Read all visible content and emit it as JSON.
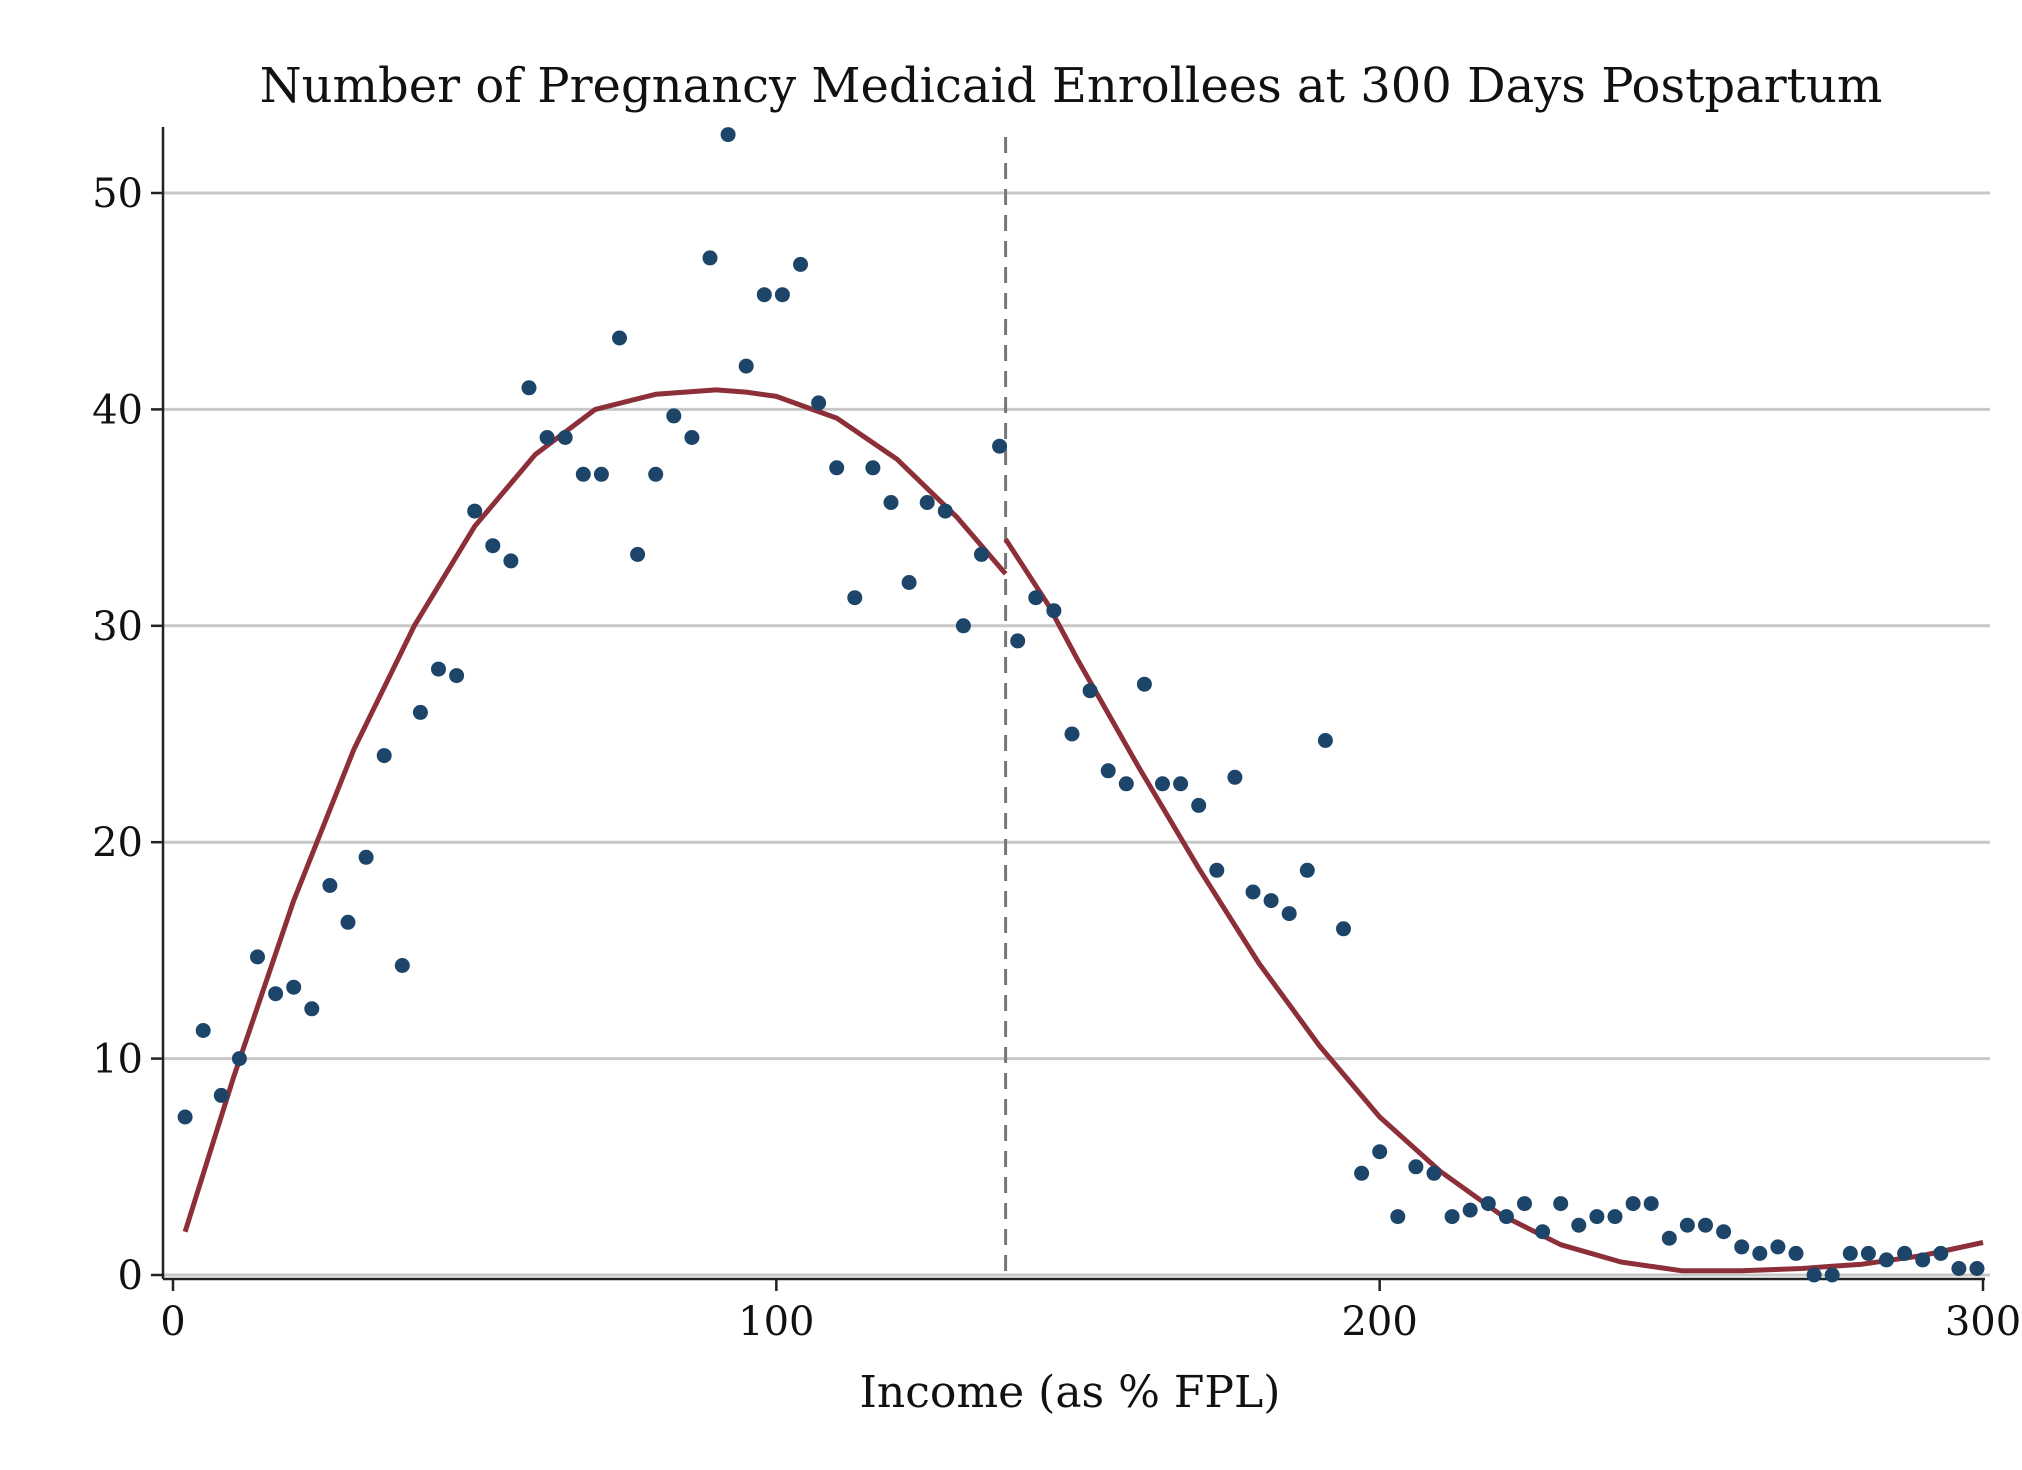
{
  "chart_data": {
    "type": "scatter",
    "title": "Number of Pregnancy Medicaid Enrollees at 300 Days Postpartum",
    "xlabel": "Income (as % FPL)",
    "ylabel": "",
    "xlim": [
      0,
      300
    ],
    "ylim": [
      0,
      52
    ],
    "x_ticks": [
      0,
      100,
      200,
      300
    ],
    "x_tick_labels": [
      "0",
      "100",
      "200",
      "300"
    ],
    "y_ticks": [
      0,
      10,
      20,
      30,
      40,
      50
    ],
    "y_tick_labels": [
      "0",
      "10",
      "20",
      "30",
      "40",
      "50"
    ],
    "grid": "horizontal",
    "cutoff_x": 138,
    "colors": {
      "points": "#1d4569",
      "fit": "#8c2f39",
      "cutoff": "#777777",
      "grid": "#c8c8c8"
    },
    "points": {
      "x": [
        2,
        5,
        8,
        11,
        14,
        17,
        20,
        23,
        26,
        29,
        32,
        35,
        38,
        41,
        44,
        47,
        50,
        53,
        56,
        59,
        62,
        65,
        68,
        71,
        74,
        77,
        80,
        83,
        86,
        89,
        92,
        95,
        98,
        101,
        104,
        107,
        110,
        113,
        116,
        119,
        122,
        125,
        128,
        131,
        134,
        137,
        140,
        143,
        146,
        149,
        152,
        155,
        158,
        161,
        164,
        167,
        170,
        173,
        176,
        179,
        182,
        185,
        188,
        191,
        194,
        197,
        200,
        203,
        206,
        209,
        212,
        215,
        218,
        221,
        224,
        227,
        230,
        233,
        236,
        239,
        242,
        245,
        248,
        251,
        254,
        257,
        260,
        263,
        266,
        269,
        272,
        275,
        278,
        281,
        284,
        287,
        290,
        293,
        296,
        299
      ],
      "y": [
        7.3,
        11.3,
        8.3,
        10,
        14.7,
        13,
        13.3,
        12.3,
        18,
        16.3,
        19.3,
        24,
        14.3,
        26,
        28,
        27.7,
        35.3,
        33.7,
        33,
        41,
        38.7,
        38.7,
        37,
        37,
        43.3,
        33.3,
        37,
        39.7,
        38.7,
        47,
        52.7,
        42,
        45.3,
        45.3,
        46.7,
        40.3,
        37.3,
        31.3,
        37.3,
        35.7,
        32,
        35.7,
        35.3,
        30,
        33.3,
        38.3,
        29.3,
        31.3,
        30.7,
        25,
        27,
        23.3,
        22.7,
        27.3,
        22.7,
        22.7,
        21.7,
        18.7,
        23,
        17.7,
        17.3,
        16.7,
        18.7,
        24.7,
        16,
        4.7,
        5.7,
        2.7,
        5,
        4.7,
        2.7,
        3,
        3.3,
        2.7,
        3.3,
        2,
        3.3,
        2.3,
        2.7,
        2.7,
        3.3,
        3.3,
        1.7,
        2.3,
        2.3,
        2,
        1.3,
        1,
        1.3,
        1,
        0,
        0,
        1,
        1,
        0.7,
        1,
        0.7,
        1,
        0.3,
        0.3
      ]
    },
    "series": [
      {
        "x": [
          2,
          10,
          20,
          30,
          40,
          50,
          60,
          70,
          80,
          90,
          95,
          100,
          110,
          120,
          130,
          138
        ],
        "y": [
          2.0,
          9.1,
          17.3,
          24.3,
          30.0,
          34.6,
          37.9,
          40.0,
          40.7,
          40.9,
          40.8,
          40.6,
          39.6,
          37.7,
          35.0,
          32.4
        ]
      },
      {
        "x": [
          138,
          145,
          150,
          160,
          170,
          180,
          190,
          200,
          210,
          220,
          230,
          240,
          250,
          260,
          270,
          275,
          280,
          290,
          300
        ],
        "y": [
          34.0,
          31.0,
          28.4,
          23.5,
          18.8,
          14.4,
          10.6,
          7.3,
          4.8,
          2.8,
          1.4,
          0.6,
          0.2,
          0.2,
          0.3,
          0.4,
          0.5,
          0.9,
          1.5
        ]
      }
    ]
  }
}
